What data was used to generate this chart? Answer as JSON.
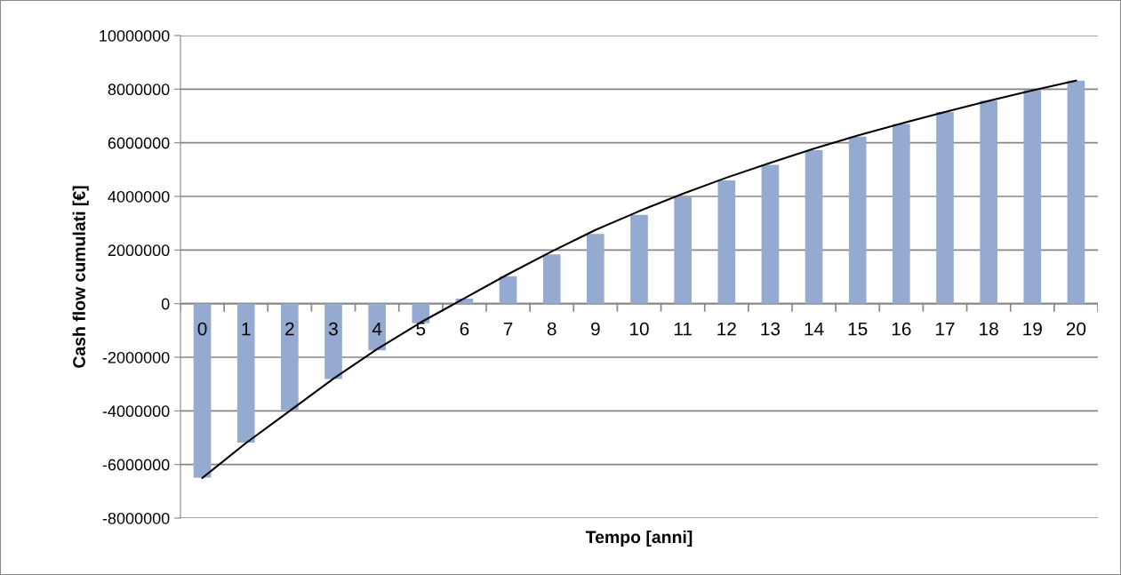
{
  "chart_data": {
    "type": "bar",
    "xlabel": "Tempo [anni]",
    "ylabel": "Cash flow cumulati [€]",
    "categories": [
      "0",
      "1",
      "2",
      "3",
      "4",
      "5",
      "6",
      "7",
      "8",
      "9",
      "10",
      "11",
      "12",
      "13",
      "14",
      "15",
      "16",
      "17",
      "18",
      "19",
      "20"
    ],
    "series": [
      {
        "color": "#95aad1",
        "values": [
          -6490000,
          -5180000,
          -3960000,
          -2810000,
          -1740000,
          -730000,
          190000,
          1020000,
          1840000,
          2600000,
          3310000,
          3970000,
          4600000,
          5180000,
          5720000,
          6230000,
          6700000,
          7150000,
          7570000,
          7970000,
          8320000
        ]
      },
      {
        "type": "line",
        "color": "#000000",
        "values": [
          -6500000,
          -5200000,
          -4000000,
          -2800000,
          -1700000,
          -700000,
          200000,
          1100000,
          1950000,
          2750000,
          3450000,
          4100000,
          4700000,
          5250000,
          5780000,
          6270000,
          6720000,
          7150000,
          7560000,
          7950000,
          8320000
        ]
      }
    ],
    "ylim": [
      -8000000,
      10000000
    ],
    "yticks": [
      -8000000,
      -6000000,
      -4000000,
      -2000000,
      0,
      2000000,
      4000000,
      6000000,
      8000000,
      10000000
    ],
    "grid": "y",
    "legend": false
  }
}
